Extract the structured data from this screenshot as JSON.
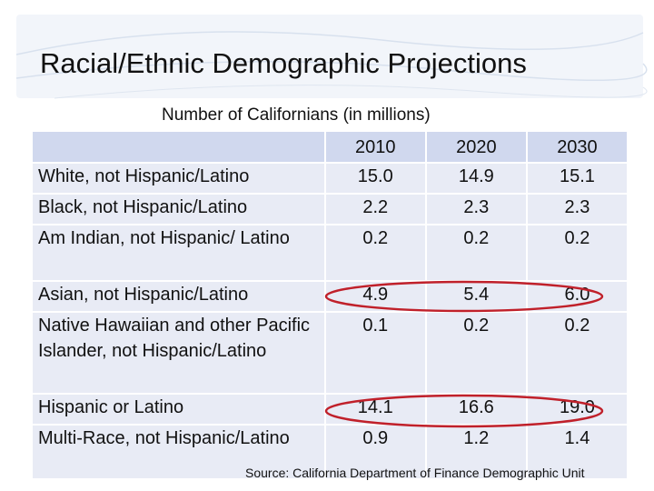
{
  "slide": {
    "title": "Racial/Ethnic Demographic Projections",
    "subtitle": "Number of Californians (in millions)",
    "source": "Source: California Department of Finance Demographic Unit"
  },
  "table": {
    "corner": "",
    "years": [
      "2010",
      "2020",
      "2030"
    ],
    "rows": [
      {
        "label": "White, not Hispanic/Latino",
        "values": [
          "15.0",
          "14.9",
          "15.1"
        ]
      },
      {
        "label": "Black, not Hispanic/Latino",
        "values": [
          "2.2",
          "2.3",
          "2.3"
        ]
      },
      {
        "label": "Am Indian, not Hispanic/ Latino",
        "values": [
          "0.2",
          "0.2",
          "0.2"
        ]
      },
      {
        "label": "Asian, not Hispanic/Latino",
        "values": [
          "4.9",
          "5.4",
          "6.0"
        ]
      },
      {
        "label": "Native Hawaiian and other Pacific Islander, not Hispanic/Latino",
        "values": [
          "0.1",
          "0.2",
          "0.2"
        ]
      },
      {
        "label": "Hispanic or Latino",
        "values": [
          "14.1",
          "16.6",
          "19.0"
        ]
      },
      {
        "label": "Multi-Race, not Hispanic/Latino",
        "values": [
          "0.9",
          "1.2",
          "1.4"
        ]
      }
    ]
  },
  "colors": {
    "header_fill": "#d0d8ee",
    "row_fill": "#e8ebf5",
    "highlight_ellipse": "#c0202a",
    "title_band": "#e9eef6"
  }
}
